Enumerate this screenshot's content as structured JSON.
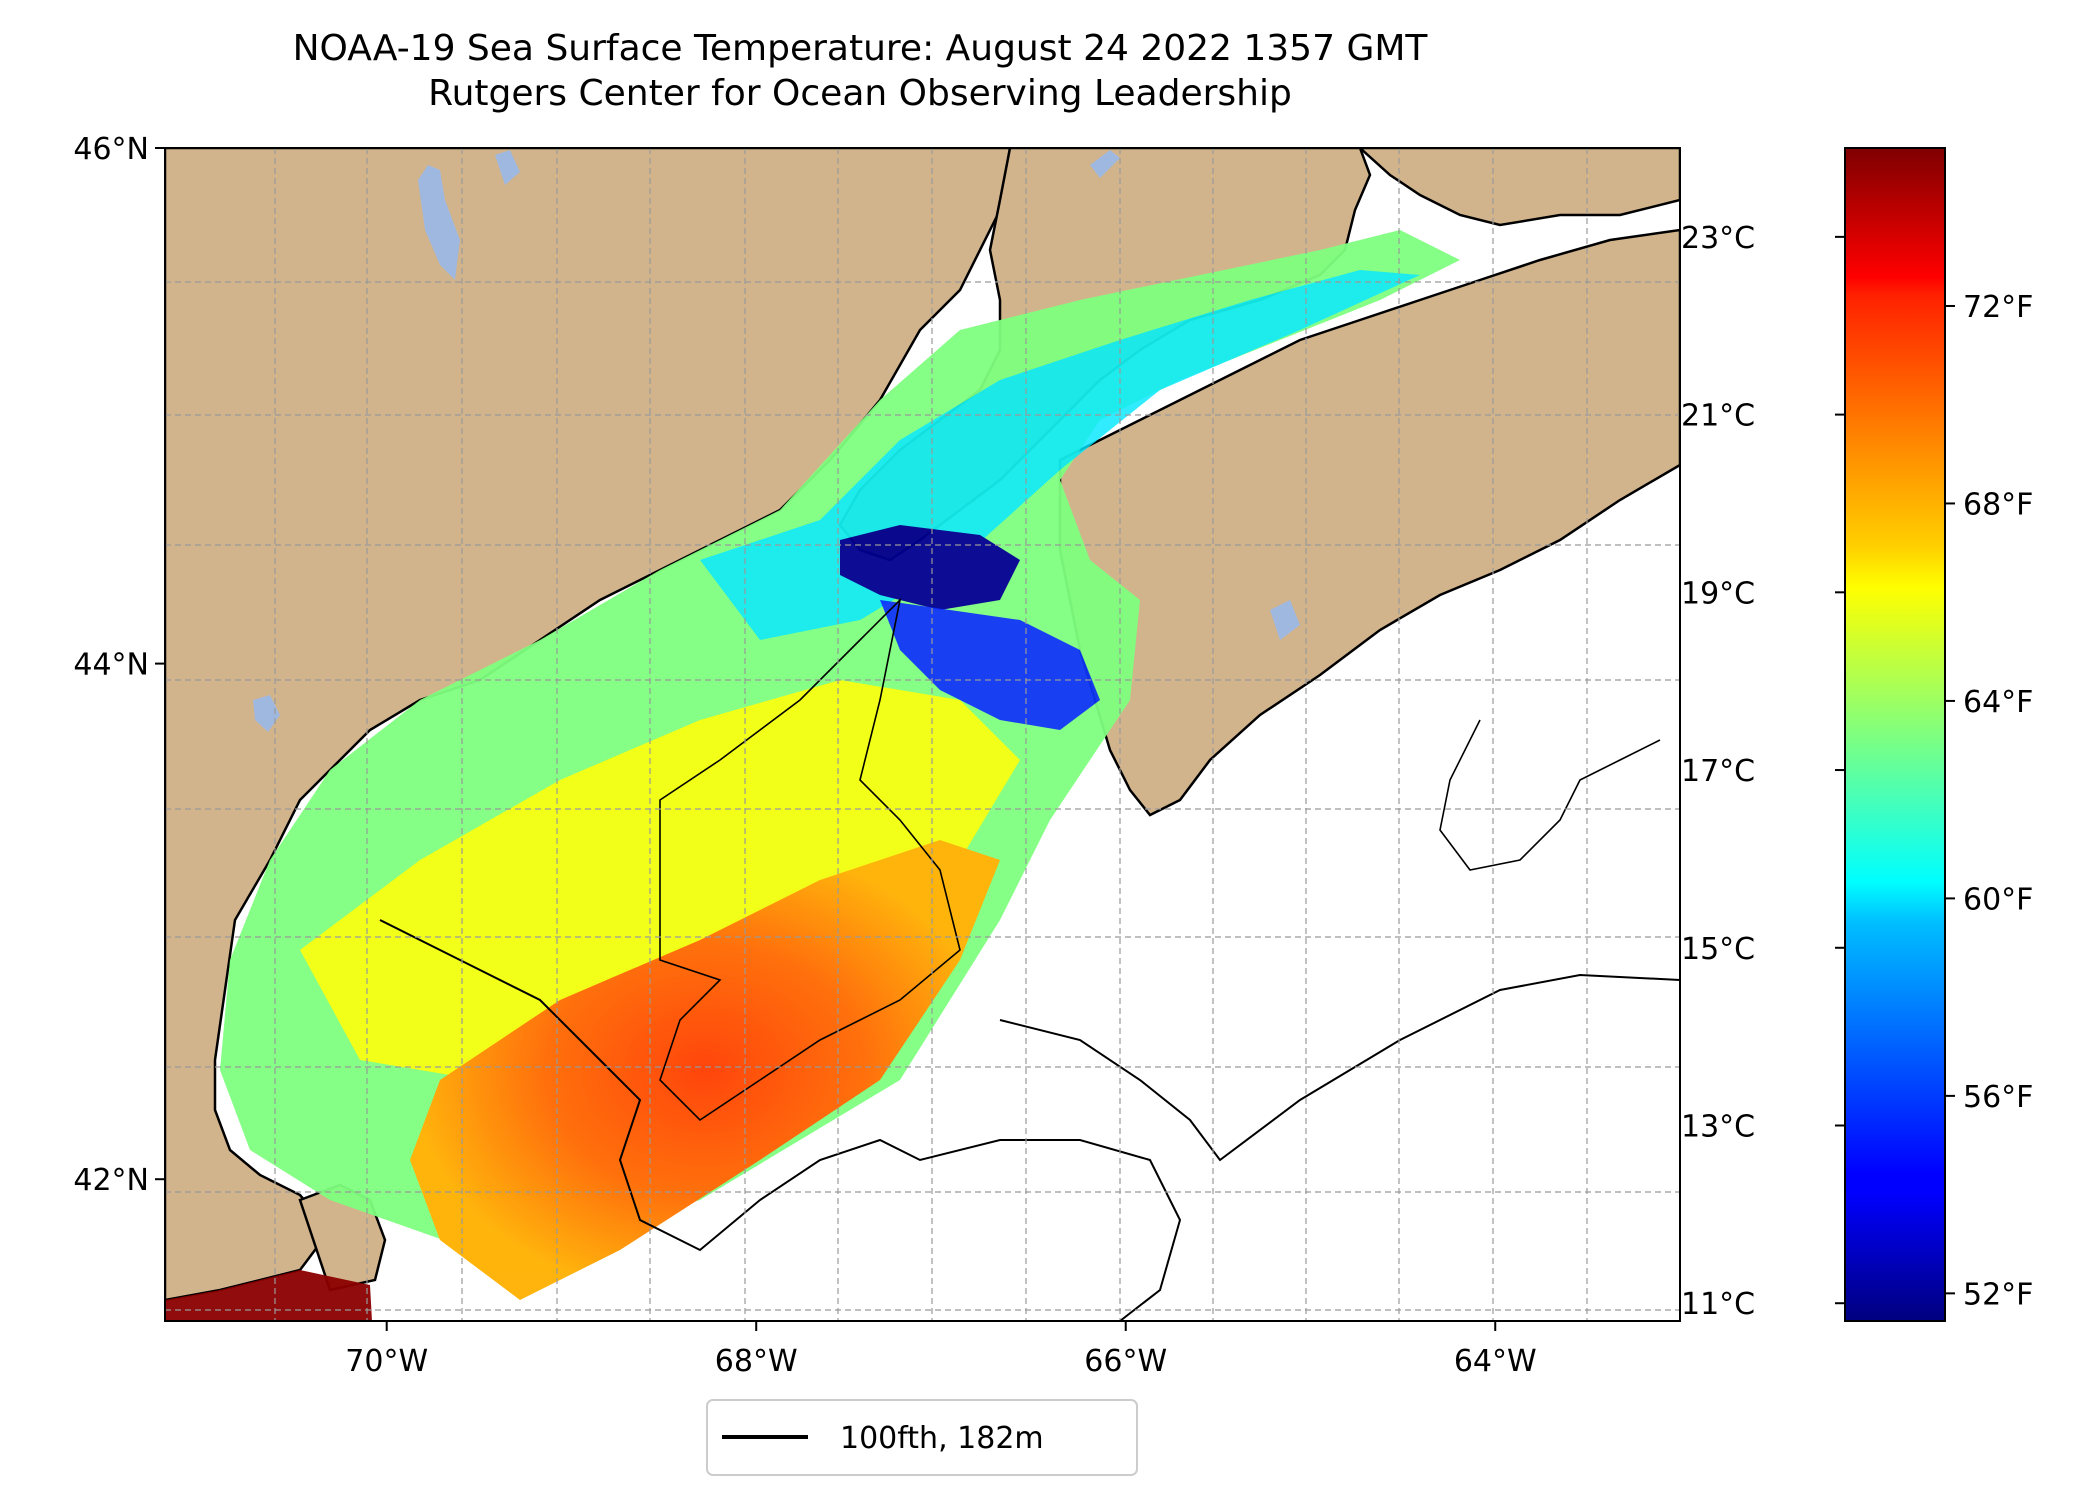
{
  "title": {
    "line1": "NOAA-19 Sea Surface Temperature: August 24 2022 1357 GMT",
    "line2": "Rutgers Center for Ocean Observing Leadership"
  },
  "map": {
    "lon_range": [
      -71.2,
      -63.0
    ],
    "lat_range": [
      41.45,
      46.0
    ],
    "lon_ticks": [
      {
        "value": -70,
        "label": "70°W"
      },
      {
        "value": -68,
        "label": "68°W"
      },
      {
        "value": -66,
        "label": "66°W"
      },
      {
        "value": -64,
        "label": "64°W"
      }
    ],
    "lat_ticks": [
      {
        "value": 42,
        "label": "42°N"
      },
      {
        "value": 44,
        "label": "44°N"
      },
      {
        "value": 46,
        "label": "46°N"
      }
    ],
    "gridlines": true,
    "colors": {
      "land": "#d2b48c",
      "lakes": "#9fb8df",
      "no_data": "#ffffff"
    }
  },
  "legend": {
    "label": "100fth, 182m",
    "placement": "bottom-center"
  },
  "colorbar": {
    "colormap": "jet",
    "range_c": [
      10.8,
      24.0
    ],
    "celsius_ticks": [
      "11°C",
      "13°C",
      "15°C",
      "17°C",
      "19°C",
      "21°C",
      "23°C"
    ],
    "fahrenheit_ticks": [
      "52°F",
      "56°F",
      "60°F",
      "64°F",
      "68°F",
      "72°F"
    ],
    "c_values": [
      11,
      13,
      15,
      17,
      19,
      21,
      23
    ],
    "f_values": [
      52,
      56,
      60,
      64,
      68,
      72
    ]
  }
}
